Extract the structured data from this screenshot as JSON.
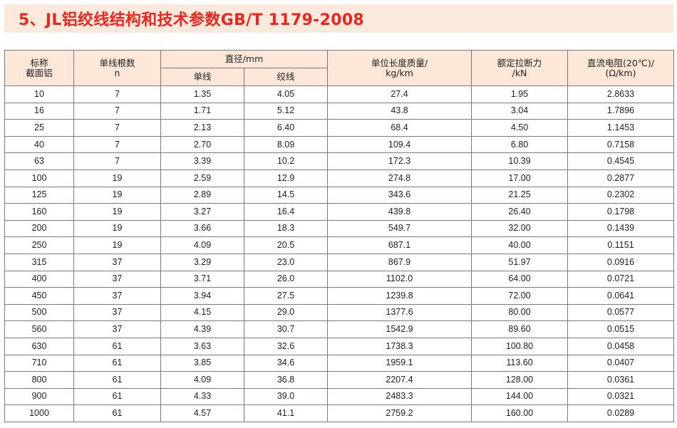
{
  "title": "5、JL铝绞线结构和技术参数GB/T 1179-2008",
  "header": {
    "col1_line1": "标称",
    "col1_line2": "截面铝",
    "col2_line1": "单线根数",
    "col2_line2": "n",
    "diameter": "直径/mm",
    "diameter_single": "单线",
    "diameter_strand": "绞线",
    "mass_line1": "单位长度质量/",
    "mass_line2": "kg/km",
    "strength_line1": "额定拉断力",
    "strength_line2": "/kN",
    "resistance_line1": "直流电阻(20℃)/",
    "resistance_line2": "(Ω/km)"
  },
  "rows": [
    [
      "10",
      "7",
      "1.35",
      "4.05",
      "27.4",
      "1.95",
      "2.8633"
    ],
    [
      "16",
      "7",
      "1.71",
      "5.12",
      "43.8",
      "3.04",
      "1.7896"
    ],
    [
      "25",
      "7",
      "2.13",
      "6.40",
      "68.4",
      "4.50",
      "1.1453"
    ],
    [
      "40",
      "7",
      "2.70",
      "8.09",
      "109.4",
      "6.80",
      "0.7158"
    ],
    [
      "63",
      "7",
      "3.39",
      "10.2",
      "172.3",
      "10.39",
      "0.4545"
    ],
    [
      "100",
      "19",
      "2.59",
      "12.9",
      "274.8",
      "17.00",
      "0.2877"
    ],
    [
      "125",
      "19",
      "2.89",
      "14.5",
      "343.6",
      "21.25",
      "0.2302"
    ],
    [
      "160",
      "19",
      "3.27",
      "16.4",
      "439.8",
      "26.40",
      "0.1798"
    ],
    [
      "200",
      "19",
      "3.66",
      "18.3",
      "549.7",
      "32.00",
      "0.1439"
    ],
    [
      "250",
      "19",
      "4.09",
      "20.5",
      "687.1",
      "40.00",
      "0.1151"
    ],
    [
      "315",
      "37",
      "3.29",
      "23.0",
      "867.9",
      "51.97",
      "0.0916"
    ],
    [
      "400",
      "37",
      "3.71",
      "26.0",
      "1102.0",
      "64.00",
      "0.0721"
    ],
    [
      "450",
      "37",
      "3.94",
      "27.5",
      "1239.8",
      "72.00",
      "0.0641"
    ],
    [
      "500",
      "37",
      "4.15",
      "29.0",
      "1377.6",
      "80.00",
      "0.0577"
    ],
    [
      "560",
      "37",
      "4.39",
      "30.7",
      "1542.9",
      "89.60",
      "0.0515"
    ],
    [
      "630",
      "61",
      "3.63",
      "32.6",
      "1738.3",
      "100.80",
      "0.0458"
    ],
    [
      "710",
      "61",
      "3.85",
      "34.6",
      "1959.1",
      "113.60",
      "0.0407"
    ],
    [
      "800",
      "61",
      "4.09",
      "36.8",
      "2207.4",
      "128.00",
      "0.0361"
    ],
    [
      "900",
      "61",
      "4.33",
      "39.0",
      "2483.3",
      "144.00",
      "0.0321"
    ],
    [
      "1000",
      "61",
      "4.57",
      "41.1",
      "2759.2",
      "160.00",
      "0.0289"
    ]
  ],
  "colors": {
    "title_text": "#e8281f",
    "title_bg": "#fbe9dd",
    "header_bg": "#fbe6d8",
    "border": "#7a7a7a"
  }
}
